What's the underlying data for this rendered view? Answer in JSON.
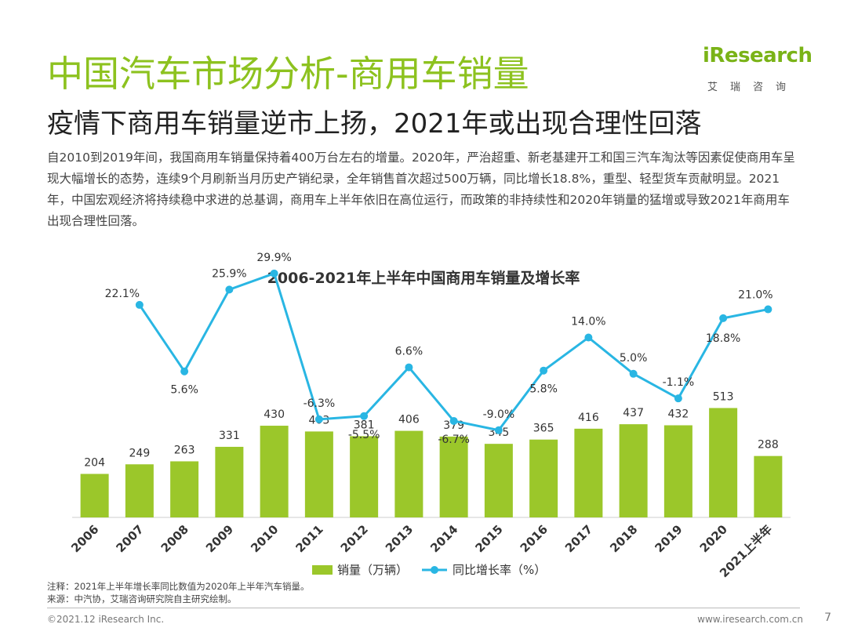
{
  "header": {
    "title": "中国汽车市场分析-商用车销量",
    "subtitle": "疫情下商用车销量逆市上扬，2021年或出现合理性回落",
    "logo_text": "iResearch",
    "logo_sub": "艾瑞咨询"
  },
  "body": {
    "paragraph": "自2010到2019年间，我国商用车销量保持着400万台左右的增量。2020年，严治超重、新老基建开工和国三汽车淘汰等因素促使商用车呈现大幅增长的态势，连续9个月刷新当月历史产销纪录，全年销售首次超过500万辆，同比增长18.8%，重型、轻型货车贡献明显。2021年，中国宏观经济将持续稳中求进的总基调，商用车上半年依旧在高位运行，而政策的非持续性和2020年销量的猛增或导致2021年商用车出现合理性回落。"
  },
  "chart_data": {
    "type": "bar",
    "title": "2006-2021年上半年中国商用车销量及增长率",
    "categories": [
      "2006",
      "2007",
      "2008",
      "2009",
      "2010",
      "2011",
      "2012",
      "2013",
      "2014",
      "2015",
      "2016",
      "2017",
      "2018",
      "2019",
      "2020",
      "2021上半年"
    ],
    "series": [
      {
        "name": "销量（万辆）",
        "type": "bar",
        "values": [
          204,
          249,
          263,
          331,
          430,
          403,
          381,
          406,
          379,
          345,
          365,
          416,
          437,
          432,
          513,
          288
        ]
      },
      {
        "name": "同比增长率（%）",
        "type": "line",
        "values": [
          null,
          22.1,
          5.6,
          25.9,
          29.9,
          -6.3,
          -5.5,
          6.6,
          -6.7,
          -9.0,
          5.8,
          14.0,
          5.0,
          -1.1,
          18.8,
          21.0
        ]
      }
    ],
    "line_labels": [
      "",
      "22.1%",
      "5.6%",
      "25.9%",
      "29.9%",
      "-6.3%",
      "-5.5%",
      "6.6%",
      "-6.7%",
      "-9.0%",
      "5.8%",
      "14.0%",
      "5.0%",
      "-1.1%",
      "18.8%",
      "21.0%"
    ],
    "legend": [
      "销量（万辆）",
      "同比增长率（%）"
    ],
    "colors": {
      "bar": "#9bc72a",
      "line": "#29b6e3"
    }
  },
  "notes": {
    "note": "注释：2021年上半年增长率同比数值为2020年上半年汽车销量。",
    "source": "来源：中汽协，艾瑞咨询研究院自主研究绘制。"
  },
  "footer": {
    "copyright": "©2021.12 iResearch Inc.",
    "website": "www.iresearch.com.cn",
    "page": "7"
  }
}
